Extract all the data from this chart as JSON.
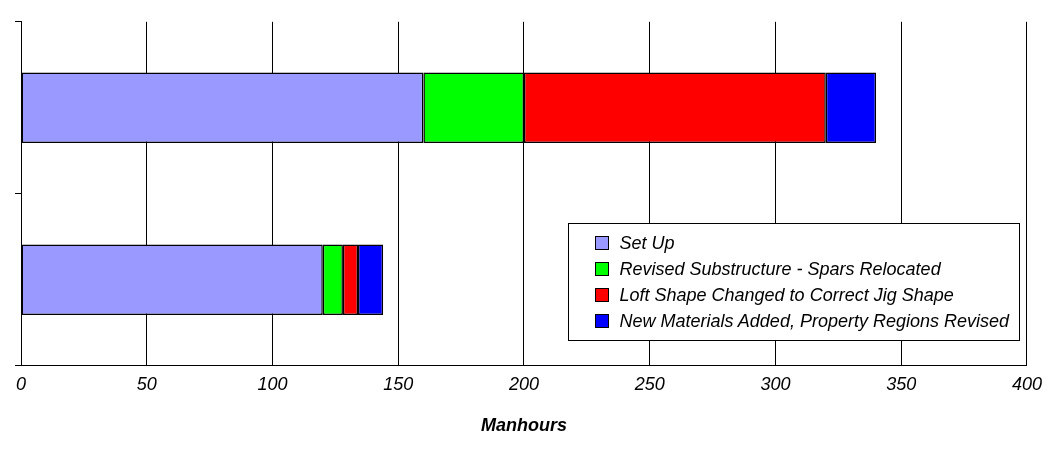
{
  "chart_data": {
    "type": "bar",
    "orientation": "horizontal",
    "stacked": true,
    "categories": [
      null,
      null
    ],
    "xlabel": "Manhours",
    "xlim": [
      0,
      400
    ],
    "xticks": [
      0,
      50,
      100,
      150,
      200,
      250,
      300,
      350,
      400
    ],
    "grid": "x",
    "legend": "bottom right",
    "series": [
      {
        "name": "Set Up",
        "color": "#9999ff",
        "values": [
          160,
          120
        ]
      },
      {
        "name": "Revised Substructure - Spars Relocated",
        "color": "#00ff00",
        "values": [
          40,
          8
        ]
      },
      {
        "name": "Loft Shape Changed to Correct Jig Shape",
        "color": "#ff0000",
        "values": [
          120,
          6
        ]
      },
      {
        "name": "New Materials Added, Property Regions Revised",
        "color": "#0000ff",
        "values": [
          20,
          10
        ]
      }
    ]
  }
}
